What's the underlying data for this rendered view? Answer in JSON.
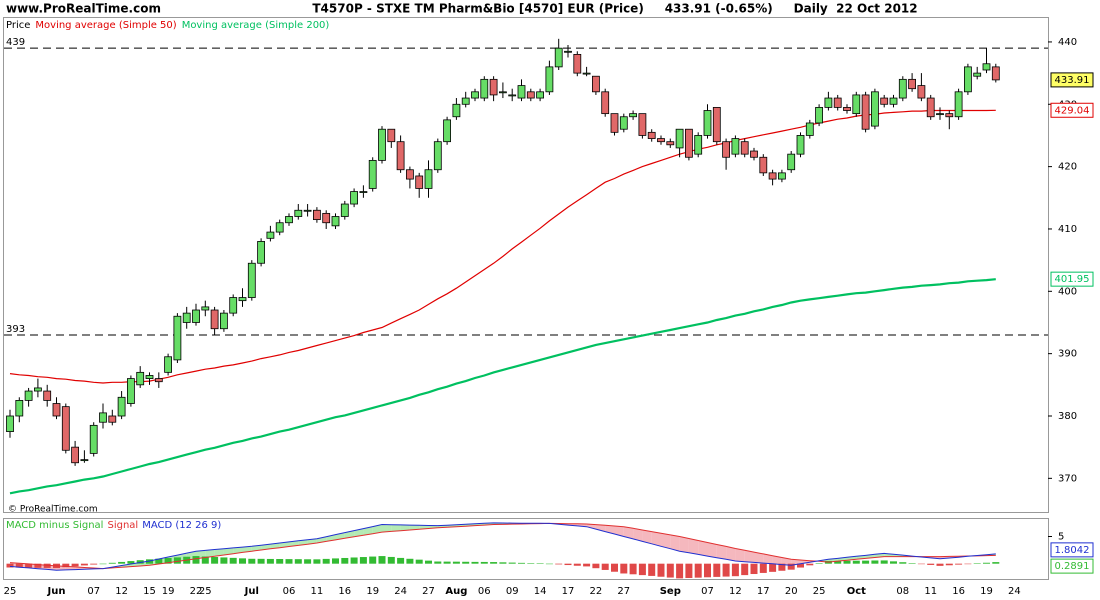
{
  "site": "www.ProRealTime.com",
  "title": "T4570P - STXE TM Pharm&Bio [4570] EUR (Price)     433.91 (-0.65%)     Daily  22 Oct 2012",
  "copyright": "© ProRealTime.com",
  "chart_data": [
    {
      "type": "candlestick",
      "price_label": "Price",
      "up_color": "#66dd66",
      "down_color": "#e06868",
      "categories": [
        "25",
        null,
        null,
        null,
        null,
        "Jun",
        null,
        null,
        null,
        "07",
        null,
        null,
        "12",
        null,
        null,
        "15",
        null,
        "19",
        null,
        null,
        "22",
        "25",
        null,
        null,
        null,
        null,
        "Jul",
        null,
        null,
        null,
        "06",
        null,
        null,
        "11",
        null,
        null,
        "16",
        null,
        null,
        "19",
        null,
        null,
        "24",
        null,
        null,
        "27",
        null,
        null,
        "Aug",
        null,
        null,
        "06",
        null,
        null,
        "09",
        null,
        null,
        "14",
        null,
        null,
        "17",
        null,
        null,
        "22",
        null,
        null,
        "27",
        null,
        null,
        null,
        null,
        "Sep",
        null,
        null,
        null,
        "07",
        null,
        null,
        "12",
        null,
        null,
        "17",
        null,
        null,
        "20",
        null,
        null,
        "25",
        null,
        null,
        null,
        "Oct",
        null,
        null,
        null,
        null,
        "08",
        null,
        null,
        "11",
        null,
        null,
        "16",
        null,
        null,
        "19",
        null,
        null,
        "24",
        null,
        null,
        null
      ],
      "open": [
        377.5,
        380,
        382.5,
        384,
        384,
        382,
        381.5,
        375,
        373,
        374,
        379,
        380,
        380,
        382,
        385,
        386,
        386,
        387,
        389,
        395,
        395,
        397,
        397,
        394,
        396.5,
        398.5,
        399,
        404.5,
        408.5,
        409.5,
        411,
        412,
        413,
        413,
        412.5,
        410.5,
        412,
        414,
        416,
        416.5,
        421,
        426,
        424,
        419.5,
        418.5,
        416.5,
        419.5,
        424,
        428,
        430,
        431,
        431,
        434,
        432,
        431.5,
        431,
        432,
        431,
        432,
        436,
        438.5,
        438,
        435,
        434.5,
        432,
        428.5,
        426,
        428,
        428.5,
        425.5,
        424.5,
        424,
        423,
        426,
        422,
        425,
        429.5,
        424,
        422,
        424,
        422.5,
        421.5,
        419,
        418,
        419.5,
        422,
        425,
        427,
        429.5,
        431,
        429.5,
        428.5,
        431.5,
        426.5,
        431,
        430,
        431,
        434,
        433,
        431,
        428.5,
        428.5,
        428,
        432,
        434.5,
        435.5,
        436,
        null,
        null,
        null,
        null,
        null
      ],
      "high": [
        381,
        383,
        384.5,
        386,
        385,
        383,
        382,
        376,
        374.5,
        379,
        382,
        381,
        384,
        386.5,
        388,
        387,
        387,
        390,
        396.5,
        397.5,
        398,
        398.5,
        397.5,
        397,
        399.5,
        400.5,
        405,
        408.5,
        410.5,
        411.5,
        412.5,
        414,
        414,
        413.5,
        413,
        412.5,
        414.5,
        416.5,
        417,
        421.5,
        426.5,
        426,
        425,
        420,
        419,
        421,
        424.5,
        428,
        431,
        432,
        432.5,
        434.5,
        434.5,
        433.5,
        432.5,
        434,
        432.5,
        432.5,
        437,
        440.5,
        439.5,
        438.5,
        436,
        434.5,
        432.5,
        428.5,
        428.5,
        429,
        428.5,
        426,
        425,
        424.5,
        426,
        426,
        425.5,
        430,
        429.5,
        424.5,
        425,
        424.5,
        423,
        422,
        419.5,
        419.5,
        422.5,
        425.5,
        427.5,
        430,
        432,
        431.5,
        430,
        432,
        432,
        432.5,
        431.5,
        431.5,
        434.5,
        435,
        435,
        431.5,
        429.5,
        429,
        432.5,
        436.5,
        436,
        439,
        436.5,
        null,
        null,
        null,
        null,
        null
      ],
      "low": [
        376.5,
        379,
        381.5,
        383,
        381.5,
        379.5,
        374,
        372,
        372.5,
        373.5,
        378,
        378.5,
        379.5,
        381.5,
        384.5,
        385,
        384.5,
        386.5,
        388.5,
        394,
        394.5,
        396,
        393,
        393.5,
        396,
        397.5,
        398.5,
        404,
        408,
        409,
        410.5,
        411.5,
        412,
        411,
        410,
        410,
        411.5,
        413.5,
        415,
        416,
        420.5,
        423,
        419,
        416.5,
        415,
        415,
        419,
        423.5,
        427.5,
        429.5,
        430.5,
        430.5,
        430.5,
        431,
        430.5,
        430.5,
        430.5,
        430.5,
        431.5,
        435.5,
        437.5,
        434.5,
        434.5,
        431.5,
        428,
        425,
        425.5,
        427.5,
        424.5,
        424,
        423.5,
        423,
        421.5,
        421,
        421.5,
        424.5,
        423.5,
        419.5,
        421.5,
        421.5,
        421,
        418.5,
        417,
        417.5,
        419,
        421.5,
        424.5,
        426.5,
        429,
        429,
        428.5,
        428,
        425.5,
        426,
        429.5,
        429.5,
        430.5,
        432,
        430.5,
        427.5,
        427.5,
        426,
        427.5,
        431.5,
        434,
        435,
        433.5,
        null,
        null,
        null,
        null,
        null
      ],
      "close": [
        380,
        382.5,
        384,
        384.5,
        382.5,
        380,
        374.5,
        372.5,
        373,
        378.5,
        380.5,
        379,
        383,
        386,
        387,
        386.5,
        385.5,
        389.5,
        396,
        396.5,
        397,
        397.5,
        394,
        396.5,
        399,
        399,
        404.5,
        408,
        409.5,
        411,
        412,
        413,
        413,
        411.5,
        411,
        412,
        414,
        416,
        416,
        421,
        426,
        424,
        419.5,
        418,
        416.5,
        419.5,
        424,
        427.5,
        430,
        431,
        432,
        434,
        431.5,
        432,
        431.5,
        433,
        431,
        432,
        436,
        439,
        438.5,
        435,
        435,
        432,
        428.5,
        425.5,
        428,
        428.5,
        425,
        424.5,
        424,
        423.5,
        426,
        421.5,
        425,
        429,
        424,
        421.5,
        424.5,
        422,
        421.5,
        419,
        418,
        419,
        422,
        425,
        427,
        429.5,
        431,
        429.5,
        429,
        431.5,
        426,
        432,
        430,
        431,
        434,
        432.5,
        431,
        428,
        428.5,
        428,
        432,
        436,
        435,
        436.5,
        433.91,
        null,
        null,
        null,
        null,
        null
      ],
      "series": [
        {
          "name": "Moving average (Simple 50)",
          "color": "#e00000",
          "values": [
            386.8,
            386.6,
            386.5,
            386.3,
            386.2,
            386.0,
            385.9,
            385.7,
            385.6,
            385.4,
            385.3,
            385.4,
            385.4,
            385.5,
            385.5,
            385.6,
            385.9,
            386.2,
            386.6,
            386.9,
            387.2,
            387.5,
            387.7,
            388.0,
            388.2,
            388.5,
            388.8,
            389.2,
            389.5,
            389.8,
            390.2,
            390.5,
            390.9,
            391.3,
            391.7,
            392.1,
            392.5,
            392.9,
            393.4,
            393.8,
            394.2,
            394.9,
            395.6,
            396.3,
            397.0,
            397.9,
            398.8,
            399.6,
            400.5,
            401.5,
            402.5,
            403.5,
            404.5,
            405.6,
            406.8,
            407.9,
            409.0,
            410.1,
            411.3,
            412.4,
            413.5,
            414.5,
            415.5,
            416.5,
            417.5,
            418.1,
            418.8,
            419.4,
            420.0,
            420.5,
            421.0,
            421.5,
            422.0,
            422.4,
            422.8,
            423.1,
            423.5,
            423.8,
            424.2,
            424.5,
            424.8,
            425.1,
            425.4,
            425.7,
            426.0,
            426.3,
            426.7,
            427.0,
            427.3,
            427.6,
            427.8,
            428.1,
            428.3,
            428.4,
            428.6,
            428.7,
            428.8,
            428.9,
            428.9,
            429.0,
            429.0,
            429.0,
            429.0,
            429.0,
            429.0,
            429.0,
            429.04,
            null,
            null,
            null,
            null,
            null
          ]
        },
        {
          "name": "Moving average (Simple 200)",
          "color": "#00c060",
          "values": [
            367.6,
            367.9,
            368.1,
            368.4,
            368.7,
            368.9,
            369.2,
            369.5,
            369.8,
            370.0,
            370.3,
            370.7,
            371.1,
            371.5,
            371.9,
            372.3,
            372.6,
            373.0,
            373.4,
            373.8,
            374.2,
            374.6,
            374.9,
            375.3,
            375.7,
            376.0,
            376.4,
            376.7,
            377.1,
            377.5,
            377.8,
            378.2,
            378.6,
            379.0,
            379.4,
            379.8,
            380.1,
            380.5,
            380.9,
            381.3,
            381.7,
            382.1,
            382.5,
            382.9,
            383.4,
            383.8,
            384.3,
            384.7,
            385.2,
            385.6,
            386.1,
            386.5,
            387.0,
            387.4,
            387.8,
            388.2,
            388.6,
            389.0,
            389.4,
            389.8,
            390.2,
            390.6,
            391.0,
            391.4,
            391.7,
            392.0,
            392.3,
            392.6,
            392.9,
            393.2,
            393.5,
            393.8,
            394.1,
            394.4,
            394.7,
            395.0,
            395.4,
            395.7,
            396.1,
            396.4,
            396.8,
            397.1,
            397.5,
            397.8,
            398.2,
            398.5,
            398.7,
            398.9,
            399.1,
            399.3,
            399.5,
            399.7,
            399.8,
            400.0,
            400.2,
            400.4,
            400.6,
            400.7,
            400.9,
            401.0,
            401.1,
            401.3,
            401.4,
            401.6,
            401.7,
            401.8,
            401.95,
            null,
            null,
            null,
            null,
            null
          ]
        }
      ],
      "reference_lines": [
        439,
        393
      ],
      "ylim": [
        364.6,
        444
      ],
      "yticks": [
        370,
        380,
        390,
        400,
        410,
        420,
        430,
        440
      ]
    },
    {
      "type": "macd",
      "ylim": [
        -3,
        8.4
      ],
      "yticks": [
        5
      ],
      "series": [
        {
          "name": "MACD minus Signal",
          "style": "bar",
          "color": "#33bb33",
          "negative_color": "#e04848",
          "values": [
            -0.7,
            -0.72,
            -0.74,
            -0.76,
            -0.78,
            -0.8,
            -0.64,
            -0.48,
            -0.32,
            -0.16,
            0,
            0.16,
            0.32,
            0.48,
            0.64,
            0.8,
            0.92,
            1.04,
            1.16,
            1.28,
            1.4,
            1.32,
            1.23,
            1.15,
            1.07,
            0.98,
            0.9,
            0.89,
            0.87,
            0.86,
            0.84,
            0.83,
            0.81,
            0.8,
            0.88,
            0.97,
            1.05,
            1.14,
            1.22,
            1.31,
            1.4,
            1.24,
            1.06,
            0.9,
            0.74,
            0.56,
            0.4,
            0.38,
            0.37,
            0.35,
            0.33,
            0.32,
            0.3,
            0.25,
            0.2,
            0.15,
            0.1,
            0.05,
            0,
            -0.13,
            -0.25,
            -0.38,
            -0.5,
            -0.83,
            -1.15,
            -1.48,
            -1.8,
            -1.95,
            -2.1,
            -2.25,
            -2.4,
            -2.55,
            -2.7,
            -2.63,
            -2.57,
            -2.5,
            -2.43,
            -2.37,
            -2.3,
            -2.1,
            -1.9,
            -1.7,
            -1.5,
            -1.3,
            -1.1,
            -0.71,
            -0.3,
            0.1,
            0.5,
            0.51,
            0.54,
            0.55,
            0.56,
            0.59,
            0.6,
            0.43,
            0.27,
            0.1,
            -0.07,
            -0.23,
            -0.4,
            -0.29,
            -0.17,
            -0.06,
            0.06,
            0.17,
            0.2891,
            null,
            null,
            null,
            null,
            null
          ]
        },
        {
          "name": "Signal",
          "style": "line",
          "color": "#e03030",
          "values": [
            0.2,
            0.08,
            -0.04,
            -0.16,
            -0.28,
            -0.4,
            -0.5,
            -0.6,
            -0.7,
            -0.8,
            -0.9,
            -0.78,
            -0.66,
            -0.54,
            -0.42,
            -0.3,
            -0.06,
            0.18,
            0.42,
            0.66,
            0.9,
            1.13,
            1.37,
            1.6,
            1.83,
            2.07,
            2.3,
            2.51,
            2.73,
            2.94,
            3.16,
            3.37,
            3.59,
            3.8,
            4.09,
            4.37,
            4.66,
            4.94,
            5.23,
            5.51,
            5.8,
            5.93,
            6.07,
            6.2,
            6.33,
            6.47,
            6.6,
            6.7,
            6.8,
            6.9,
            7.0,
            7.1,
            7.2,
            7.23,
            7.27,
            7.3,
            7.33,
            7.37,
            7.4,
            7.38,
            7.35,
            7.33,
            7.3,
            7.18,
            7.05,
            6.93,
            6.8,
            6.5,
            6.2,
            5.9,
            5.6,
            5.3,
            5.0,
            4.63,
            4.27,
            3.9,
            3.53,
            3.17,
            2.8,
            2.47,
            2.13,
            1.8,
            1.47,
            1.13,
            0.8,
            0.68,
            0.55,
            0.43,
            0.3,
            0.47,
            0.63,
            0.8,
            0.97,
            1.13,
            1.3,
            1.3,
            1.3,
            1.3,
            1.3,
            1.3,
            1.3,
            1.34,
            1.37,
            1.41,
            1.44,
            1.48,
            1.5151,
            null,
            null,
            null,
            null,
            null
          ]
        },
        {
          "name": "MACD (12 26 9)",
          "style": "line",
          "color": "#2030d0",
          "values": [
            -0.5,
            -0.64,
            -0.78,
            -0.92,
            -1.06,
            -1.2,
            -1.14,
            -1.08,
            -1.02,
            -0.96,
            -0.9,
            -0.62,
            -0.34,
            -0.06,
            0.22,
            0.5,
            0.86,
            1.22,
            1.58,
            1.94,
            2.3,
            2.45,
            2.6,
            2.75,
            2.9,
            3.05,
            3.2,
            3.4,
            3.6,
            3.8,
            4.0,
            4.2,
            4.4,
            4.6,
            4.97,
            5.34,
            5.71,
            6.08,
            6.45,
            6.82,
            7.2,
            7.17,
            7.13,
            7.1,
            7.07,
            7.03,
            7.0,
            7.08,
            7.17,
            7.25,
            7.33,
            7.42,
            7.5,
            7.48,
            7.47,
            7.45,
            7.43,
            7.42,
            7.4,
            7.25,
            7.1,
            6.95,
            6.8,
            6.35,
            5.9,
            5.45,
            5.0,
            4.55,
            4.1,
            3.65,
            3.2,
            2.75,
            2.3,
            2.0,
            1.7,
            1.4,
            1.1,
            0.8,
            0.5,
            0.37,
            0.23,
            0.1,
            -0.03,
            -0.17,
            -0.3,
            -0.03,
            0.25,
            0.53,
            0.8,
            0.98,
            1.17,
            1.35,
            1.53,
            1.72,
            1.9,
            1.73,
            1.57,
            1.4,
            1.23,
            1.07,
            0.9,
            1.05,
            1.2,
            1.35,
            1.5,
            1.65,
            1.8042,
            null,
            null,
            null,
            null,
            null
          ]
        }
      ]
    }
  ]
}
